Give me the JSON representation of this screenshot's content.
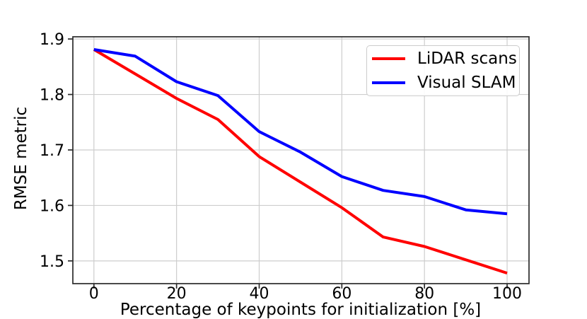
{
  "chart_data": {
    "type": "line",
    "title": "",
    "xlabel": "Percentage of keypoints for initialization [%]",
    "ylabel": "RMSE metric",
    "x": [
      0,
      10,
      20,
      30,
      40,
      50,
      60,
      70,
      80,
      90,
      100
    ],
    "series": [
      {
        "name": "LiDAR scans",
        "color": "#ff0000",
        "values": [
          1.881,
          1.837,
          1.793,
          1.755,
          1.688,
          1.642,
          1.596,
          1.543,
          1.526,
          1.502,
          1.478
        ]
      },
      {
        "name": "Visual SLAM",
        "color": "#0000ff",
        "values": [
          1.881,
          1.869,
          1.823,
          1.798,
          1.733,
          1.696,
          1.652,
          1.627,
          1.616,
          1.592,
          1.585
        ]
      }
    ],
    "xlim": [
      -5.1,
      105.3
    ],
    "ylim": [
      1.459,
      1.904
    ],
    "xticks": [
      0,
      20,
      40,
      60,
      80,
      100
    ],
    "yticks": [
      1.5,
      1.6,
      1.7,
      1.8,
      1.9
    ],
    "ytick_format_decimals": 1,
    "grid": true,
    "grid_color": "#cdcdcd",
    "spine_color": "#2b2b2b",
    "legend_position": "upper right",
    "line_width": 4
  }
}
